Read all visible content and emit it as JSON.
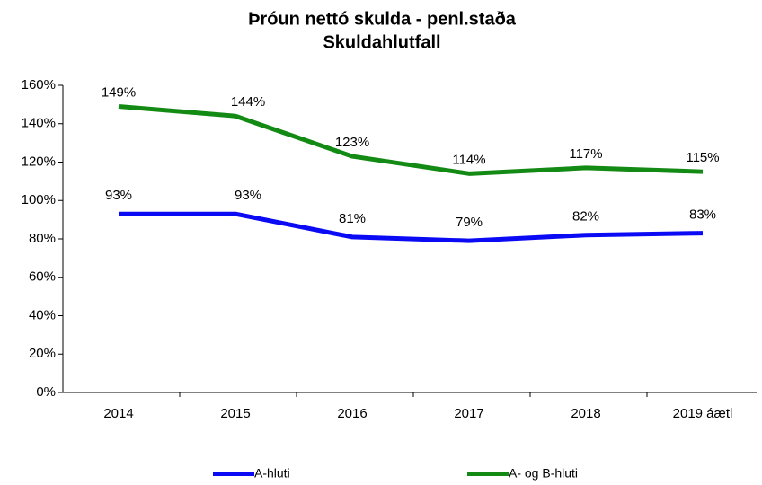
{
  "chart_data": {
    "type": "line",
    "title": "Þróun nettó skulda - penl.staða",
    "subtitle": "Skuldahlutfall",
    "categories": [
      "2014",
      "2015",
      "2016",
      "2017",
      "2018",
      "2019 áætl"
    ],
    "series": [
      {
        "name": "A-hluti",
        "color": "#0a0af5",
        "values": [
          93,
          93,
          81,
          79,
          82,
          83
        ],
        "value_labels": [
          "93%",
          "93%",
          "81%",
          "79%",
          "82%",
          "83%"
        ]
      },
      {
        "name": "A- og B-hluti",
        "color": "#138a13",
        "values": [
          149,
          144,
          123,
          114,
          117,
          115
        ],
        "value_labels": [
          "149%",
          "144%",
          "123%",
          "114%",
          "117%",
          "115%"
        ]
      }
    ],
    "ylim": [
      0,
      160
    ],
    "yticks": [
      {
        "value": 0,
        "label": "0%"
      },
      {
        "value": 20,
        "label": "20%"
      },
      {
        "value": 40,
        "label": "40%"
      },
      {
        "value": 60,
        "label": "60%"
      },
      {
        "value": 80,
        "label": "80%"
      },
      {
        "value": 100,
        "label": "100%"
      },
      {
        "value": 120,
        "label": "120%"
      },
      {
        "value": 140,
        "label": "140%"
      },
      {
        "value": 160,
        "label": "160%"
      }
    ],
    "legend": "bottom"
  }
}
